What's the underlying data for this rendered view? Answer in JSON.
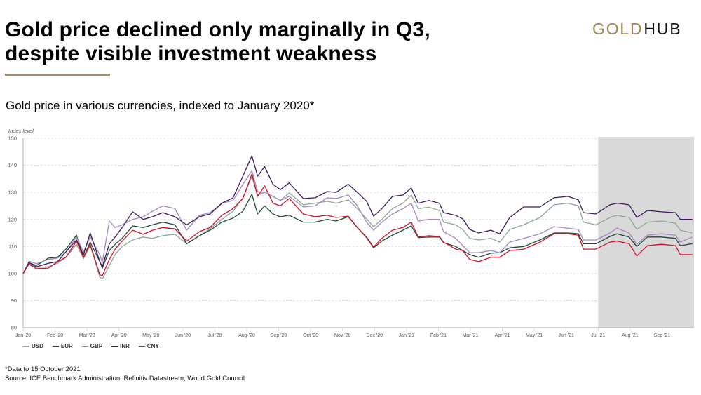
{
  "header": {
    "title_lines": [
      "Gold price declined only marginally in Q3,",
      "despite visible investment weakness"
    ],
    "logo": {
      "part1": "GOLD",
      "part2": "HUB"
    },
    "accent_color": "#a38d5d"
  },
  "subtitle": "Gold price in various currencies, indexed to January 2020*",
  "footer": {
    "note": "*Data to 15 October 2021",
    "source": "Source: ICE Benchmark Administration, Refinitiv Datastream, World Gold Council"
  },
  "chart_data": {
    "type": "line",
    "title": "Gold price in various currencies, indexed to January 2020*",
    "xlabel": "",
    "ylabel": "Index level",
    "ylim": [
      80,
      150
    ],
    "yticks": [
      80,
      90,
      100,
      110,
      120,
      130,
      140,
      150
    ],
    "x_unit": "months since Jan 2020",
    "xlim": [
      0,
      21
    ],
    "xticks": [
      0,
      1,
      2,
      3,
      4,
      5,
      6,
      7,
      8,
      9,
      10,
      11,
      12,
      13,
      14,
      15,
      16,
      17,
      18,
      19,
      20
    ],
    "xtick_labels": [
      "Jan '20",
      "Feb '20",
      "Mar '20",
      "Apr '20",
      "May '20",
      "Jun '20",
      "Jul '20",
      "Aug '20",
      "Sep '20",
      "Oct '20",
      "Nov '20",
      "Dec '20",
      "Jan '21",
      "Feb '21",
      "Mar '21",
      "Apr '21",
      "May '21",
      "Jun '21",
      "Jul '21",
      "Aug '21",
      "Sep '21"
    ],
    "grid": "horizontal-dashed",
    "legend": "bottom-left",
    "shaded_region": {
      "x_from": 18,
      "x_to": 21,
      "color": "#d9d9d9"
    },
    "x": [
      0,
      0.18,
      0.42,
      0.79,
      1.08,
      1.34,
      1.67,
      1.89,
      2.1,
      2.4,
      2.48,
      2.7,
      2.88,
      3.1,
      3.43,
      3.76,
      4.05,
      4.37,
      4.75,
      5.12,
      5.52,
      5.85,
      6.22,
      6.57,
      6.88,
      7.16,
      7.34,
      7.56,
      7.82,
      8.05,
      8.33,
      8.77,
      9.14,
      9.52,
      9.8,
      10.18,
      10.46,
      10.75,
      10.97,
      11.23,
      11.56,
      11.89,
      12.15,
      12.37,
      12.7,
      13.03,
      13.16,
      13.54,
      13.76,
      13.98,
      14.26,
      14.64,
      14.92,
      15.23,
      15.67,
      16.18,
      16.62,
      17.05,
      17.38,
      17.54,
      17.93,
      18.37,
      18.59,
      18.97,
      19.21,
      19.54,
      19.98,
      20.42,
      20.57,
      20.95
    ],
    "series": [
      {
        "name": "USD",
        "color": "#8aa897",
        "values": [
          100,
          103.5,
          102.3,
          102.5,
          103.8,
          106,
          110.8,
          105.5,
          110.3,
          98.7,
          98,
          103,
          107,
          110,
          112.4,
          113.5,
          113,
          114,
          114.5,
          111,
          114,
          116.5,
          120,
          123,
          128,
          135.8,
          129,
          130,
          128.5,
          127,
          129.8,
          125.4,
          126,
          126.7,
          126,
          127.2,
          124,
          120.2,
          117.3,
          120,
          124,
          126,
          129,
          124,
          124.5,
          123.3,
          119,
          118,
          116.3,
          113,
          112.4,
          113,
          111.6,
          116.3,
          118,
          120.7,
          125.4,
          126,
          125,
          119,
          118,
          120.7,
          121.5,
          120.7,
          116.3,
          119,
          119.4,
          118.6,
          116,
          115
        ]
      },
      {
        "name": "EUR",
        "color": "#1e4a35",
        "values": [
          100,
          104,
          103,
          105.7,
          106,
          109,
          114.2,
          106,
          111.6,
          104.4,
          102,
          108.5,
          110.8,
          113,
          117.6,
          117,
          118,
          119,
          118,
          111,
          114,
          116,
          119,
          120.5,
          123,
          129.3,
          122,
          125,
          122,
          121,
          121.5,
          119,
          119,
          120,
          119.4,
          121,
          117,
          113.3,
          109.5,
          112,
          114.2,
          116,
          117.6,
          113.3,
          113.5,
          113.5,
          111.4,
          110,
          108.5,
          107,
          106,
          107.5,
          107.7,
          109.5,
          110,
          112.4,
          115,
          115,
          114.7,
          111,
          111,
          113.7,
          114.7,
          113.5,
          110,
          113.5,
          113.5,
          113,
          110.3,
          111
        ]
      },
      {
        "name": "GBP",
        "color": "#a387bd",
        "values": [
          100,
          104.5,
          103.7,
          105.2,
          105.7,
          108,
          113.5,
          108,
          113.5,
          107,
          104,
          119.4,
          117,
          118,
          120,
          121,
          123,
          125,
          124,
          116,
          121.5,
          122.5,
          126,
          127,
          133,
          138,
          130.3,
          130,
          128.5,
          127,
          128.5,
          124.6,
          125,
          128,
          127.7,
          129,
          125,
          119,
          116,
          119,
          122,
          124,
          126,
          119.4,
          120,
          120,
          115.5,
          113,
          110.3,
          107.7,
          107.7,
          108.5,
          107.7,
          111.6,
          113,
          114.7,
          117.3,
          116.8,
          116.3,
          112.4,
          112.4,
          115,
          116.8,
          115,
          110.8,
          114.2,
          114.7,
          114.2,
          111.6,
          113.5
        ]
      },
      {
        "name": "INR",
        "color": "#3b1a5e",
        "values": [
          100,
          104,
          102.5,
          103.8,
          104.4,
          108,
          112.4,
          107,
          115,
          104.4,
          102.5,
          111,
          113.5,
          117,
          122.8,
          120,
          121,
          122.5,
          121,
          118,
          121,
          122,
          126,
          128,
          136,
          143.5,
          136,
          139.5,
          133,
          131,
          133.5,
          127.7,
          128,
          130.3,
          130,
          133,
          130,
          126.7,
          121.2,
          124,
          128.5,
          129,
          131.6,
          126,
          127,
          126,
          122.5,
          121.5,
          120.2,
          116.3,
          115,
          116,
          114.7,
          120.7,
          124.6,
          124.6,
          128,
          128.5,
          127.2,
          122.5,
          122,
          125.4,
          126,
          125.4,
          120.7,
          123.3,
          122.8,
          122.5,
          120,
          120
        ]
      },
      {
        "name": "CNY",
        "color": "#d0112b",
        "values": [
          100,
          103.5,
          101.8,
          102,
          104.4,
          106,
          112,
          106,
          110.8,
          99.5,
          99.2,
          105.2,
          109,
          112,
          116,
          114.5,
          116,
          117,
          116.5,
          112,
          115.5,
          117,
          121.5,
          124,
          127.7,
          136.8,
          128.5,
          132.4,
          126,
          125,
          127.7,
          122,
          121,
          121.5,
          120.7,
          121.2,
          117,
          113.5,
          109.8,
          113,
          116,
          117,
          119,
          113.5,
          114,
          113.7,
          111.6,
          109,
          108.5,
          105.2,
          104.4,
          106,
          106,
          108.5,
          109,
          111.6,
          114.7,
          114.7,
          114.2,
          109,
          109,
          111.6,
          112,
          111,
          106.5,
          110.3,
          110.8,
          110.3,
          107,
          107
        ]
      }
    ]
  }
}
